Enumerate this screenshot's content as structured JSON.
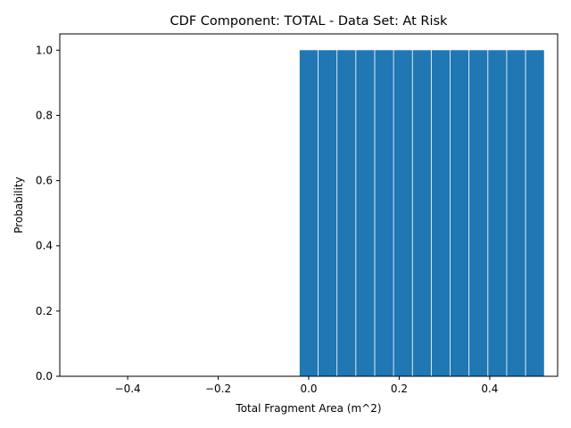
{
  "chart_data": {
    "type": "bar",
    "title": "CDF Component: TOTAL - Data Set: At Risk",
    "xlabel": "Total Fragment Area (m^2)",
    "ylabel": "Probability",
    "xlim": [
      -0.55,
      0.55
    ],
    "ylim": [
      0,
      1.05
    ],
    "bar_width": 0.04,
    "bar_color": "#1f77b4",
    "x": [
      0.0,
      0.0417,
      0.0833,
      0.125,
      0.1667,
      0.2083,
      0.25,
      0.2917,
      0.3333,
      0.375,
      0.4167,
      0.4583,
      0.5
    ],
    "values": [
      1,
      1,
      1,
      1,
      1,
      1,
      1,
      1,
      1,
      1,
      1,
      1,
      1
    ],
    "xticks": [
      -0.4,
      -0.2,
      0.0,
      0.2,
      0.4
    ],
    "xtick_labels": [
      "−0.4",
      "−0.2",
      "0.0",
      "0.2",
      "0.4"
    ],
    "yticks": [
      0.0,
      0.2,
      0.4,
      0.6,
      0.8,
      1.0
    ],
    "ytick_labels": [
      "0.0",
      "0.2",
      "0.4",
      "0.6",
      "0.8",
      "1.0"
    ],
    "grid": false,
    "legend": "none"
  }
}
